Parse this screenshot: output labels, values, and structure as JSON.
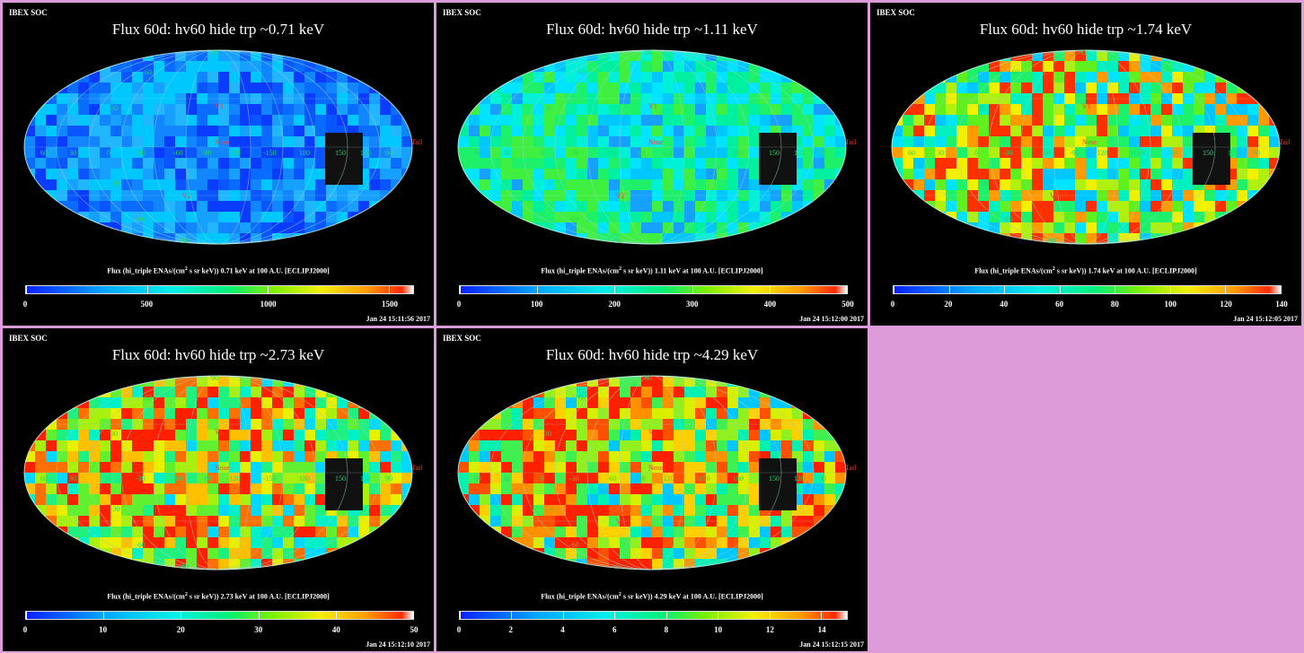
{
  "panels": [
    {
      "header": "IBEX SOC",
      "title": "Flux   60d: hv60 hide trp ~0.71 keV",
      "caption_prefix": "Flux (hi_triple ENAs/(cm",
      "caption_sup": "2",
      "caption_suffix": " s sr keV))  0.71 keV at 100 A.U. [ECLIPJ2000]",
      "scale_ticks": [
        "0",
        "500",
        "1000",
        "1500"
      ],
      "scale_max": 1600,
      "timestamp": "Jan 24 15:11:56 2017",
      "theme": "cool"
    },
    {
      "header": "IBEX SOC",
      "title": "Flux   60d: hv60 hide trp ~1.11 keV",
      "caption_prefix": "Flux (hi_triple ENAs/(cm",
      "caption_sup": "2",
      "caption_suffix": " s sr keV))  1.11 keV at 100 A.U. [ECLIPJ2000]",
      "scale_ticks": [
        "0",
        "100",
        "200",
        "300",
        "400",
        "500"
      ],
      "scale_max": 500,
      "timestamp": "Jan 24 15:12:00 2017",
      "theme": "mid"
    },
    {
      "header": "IBEX SOC",
      "title": "Flux   60d: hv60 hide trp ~1.74 keV",
      "caption_prefix": "Flux (hi_triple ENAs/(cm",
      "caption_sup": "2",
      "caption_suffix": " s sr keV))  1.74 keV at 100 A.U. [ECLIPJ2000]",
      "scale_ticks": [
        "0",
        "20",
        "40",
        "60",
        "80",
        "100",
        "120",
        "140"
      ],
      "scale_max": 140,
      "timestamp": "Jan 24 15:12:05 2017",
      "theme": "warm"
    },
    {
      "header": "IBEX SOC",
      "title": "Flux   60d: hv60 hide trp ~2.73 keV",
      "caption_prefix": "Flux (hi_triple ENAs/(cm",
      "caption_sup": "2",
      "caption_suffix": " s sr keV))  2.73 keV at 100 A.U. [ECLIPJ2000]",
      "scale_ticks": [
        "0",
        "10",
        "20",
        "30",
        "40",
        "50"
      ],
      "scale_max": 50,
      "timestamp": "Jan 24 15:12:10 2017",
      "theme": "warmer"
    },
    {
      "header": "IBEX SOC",
      "title": "Flux   60d: hv60 hide trp ~4.29 keV",
      "caption_prefix": "Flux (hi_triple ENAs/(cm",
      "caption_sup": "2",
      "caption_suffix": " s sr keV))  4.29 keV at 100 A.U. [ECLIPJ2000]",
      "scale_ticks": [
        "0",
        "2",
        "4",
        "6",
        "8",
        "10",
        "12",
        "14"
      ],
      "scale_max": 15,
      "timestamp": "Jan 24 15:12:15 2017",
      "theme": "hot"
    }
  ],
  "map_labels": {
    "v1": "V1",
    "v2": "V2",
    "nose": "Nose",
    "tail": "Tail",
    "lon": [
      "60",
      "30",
      "0",
      "-30",
      "-60",
      "-90",
      "-120",
      "-150",
      "180",
      "150",
      "120",
      "90"
    ],
    "lat": [
      "60",
      "30",
      "-30",
      "-60",
      "90",
      "-90"
    ]
  },
  "colors": {
    "background": "#dd9bd9",
    "panel": "#000000",
    "grid": "#9ad0d0"
  }
}
